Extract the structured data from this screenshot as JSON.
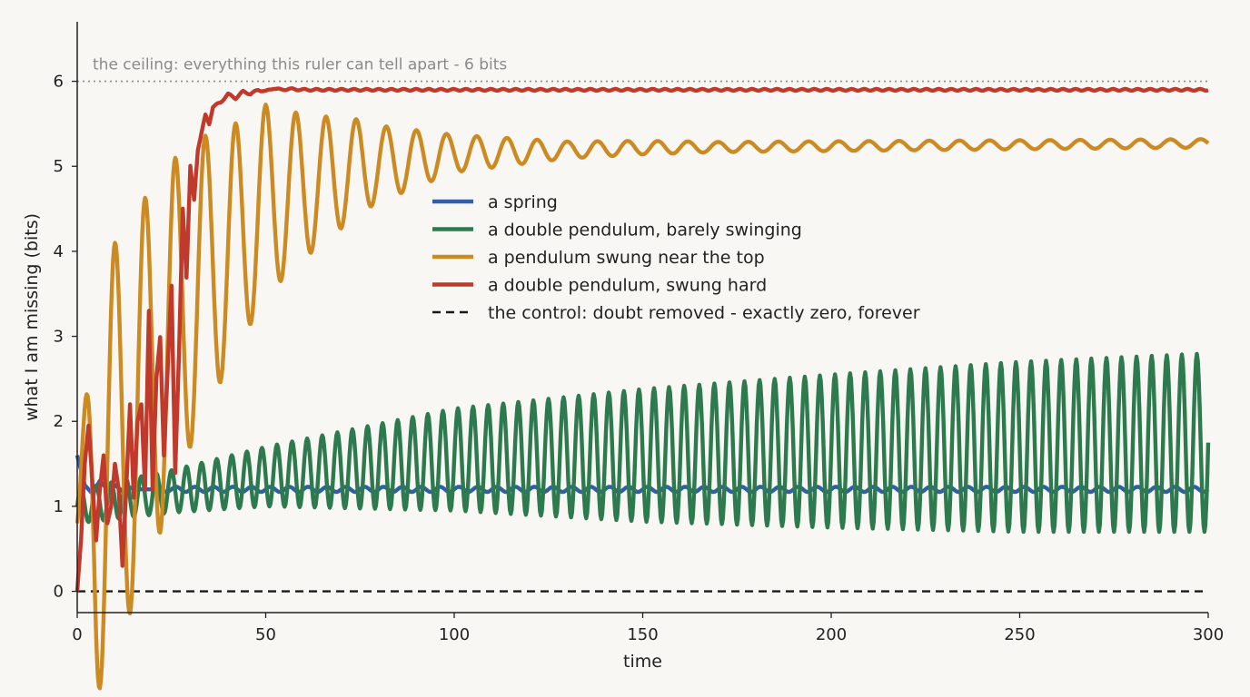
{
  "chart_data": {
    "type": "line",
    "xlabel": "time",
    "ylabel": "what I am missing  (bits)",
    "xlim": [
      0,
      300
    ],
    "ylim": [
      -0.25,
      6.7
    ],
    "xticks": [
      0,
      50,
      100,
      150,
      200,
      250,
      300
    ],
    "yticks": [
      0,
      1,
      2,
      3,
      4,
      5,
      6
    ],
    "grid": false,
    "legend_position": "center",
    "ceiling": {
      "value": 6,
      "label": "the ceiling: everything this ruler can tell apart - 6 bits",
      "color": "#8a8a8a"
    },
    "series": [
      {
        "name": "a spring",
        "color": "#2f5fa7",
        "style": "solid",
        "points": [
          [
            0,
            1.6
          ],
          [
            2,
            1.25
          ],
          [
            4,
            1.15
          ],
          [
            6,
            1.3
          ],
          [
            8,
            1.2
          ],
          [
            10,
            1.25
          ],
          [
            12,
            1.18
          ],
          [
            14,
            1.22
          ],
          [
            16,
            1.2
          ],
          [
            20,
            1.2
          ],
          [
            300,
            1.2
          ]
        ],
        "steady_level": 1.2,
        "wobble_amplitude": 0.03,
        "wobble_period": 5
      },
      {
        "name": "a double pendulum, barely swinging",
        "color": "#2e7a4f",
        "style": "solid",
        "points": [
          [
            0,
            1.0
          ],
          [
            50,
            1.35
          ],
          [
            100,
            1.55
          ],
          [
            150,
            1.6
          ],
          [
            200,
            1.65
          ],
          [
            250,
            1.7
          ],
          [
            300,
            1.75
          ]
        ],
        "amplitude_points": [
          [
            0,
            0.2
          ],
          [
            25,
            0.25
          ],
          [
            50,
            0.35
          ],
          [
            100,
            0.6
          ],
          [
            150,
            0.78
          ],
          [
            200,
            0.9
          ],
          [
            250,
            1.0
          ],
          [
            300,
            1.05
          ]
        ],
        "oscillation_period": 4.0
      },
      {
        "name": "a pendulum swung near the top",
        "color": "#cc8a22",
        "style": "solid",
        "points": [
          [
            0,
            0.8
          ],
          [
            30,
            3.5
          ],
          [
            50,
            4.6
          ],
          [
            75,
            5.0
          ],
          [
            100,
            5.15
          ],
          [
            150,
            5.22
          ],
          [
            300,
            5.27
          ]
        ],
        "amplitude_points": [
          [
            0,
            0.3
          ],
          [
            5,
            2.5
          ],
          [
            15,
            2.3
          ],
          [
            25,
            2.0
          ],
          [
            40,
            1.4
          ],
          [
            60,
            0.85
          ],
          [
            80,
            0.45
          ],
          [
            100,
            0.22
          ],
          [
            130,
            0.1
          ],
          [
            170,
            0.06
          ],
          [
            300,
            0.05
          ]
        ],
        "oscillation_period": 8.0
      },
      {
        "name": "a double pendulum, swung hard",
        "color": "#c0392b",
        "style": "solid",
        "points": [
          [
            0,
            0.0
          ],
          [
            1,
            0.6
          ],
          [
            2,
            1.5
          ],
          [
            3,
            1.95
          ],
          [
            4,
            1.3
          ],
          [
            5,
            0.6
          ],
          [
            6,
            1.2
          ],
          [
            7,
            1.6
          ],
          [
            8,
            0.8
          ],
          [
            9,
            1.0
          ],
          [
            10,
            1.5
          ],
          [
            11,
            1.2
          ],
          [
            12,
            0.3
          ],
          [
            13,
            1.2
          ],
          [
            14,
            2.2
          ],
          [
            15,
            1.1
          ],
          [
            16,
            2.0
          ],
          [
            17,
            2.2
          ],
          [
            18,
            1.2
          ],
          [
            19,
            3.3
          ],
          [
            20,
            1.2
          ],
          [
            21,
            2.5
          ],
          [
            22,
            3.0
          ],
          [
            23,
            1.6
          ],
          [
            24,
            2.6
          ],
          [
            25,
            3.6
          ],
          [
            26,
            1.4
          ],
          [
            27,
            2.8
          ],
          [
            28,
            4.5
          ],
          [
            29,
            3.7
          ],
          [
            30,
            5.0
          ],
          [
            31,
            4.6
          ],
          [
            32,
            5.2
          ],
          [
            33,
            5.4
          ],
          [
            34,
            5.6
          ],
          [
            35,
            5.5
          ],
          [
            36,
            5.7
          ],
          [
            38,
            5.75
          ],
          [
            40,
            5.85
          ],
          [
            42,
            5.8
          ],
          [
            44,
            5.88
          ],
          [
            46,
            5.85
          ],
          [
            48,
            5.9
          ],
          [
            50,
            5.88
          ],
          [
            52,
            5.92
          ],
          [
            54,
            5.9
          ],
          [
            56,
            5.91
          ],
          [
            60,
            5.9
          ],
          [
            300,
            5.9
          ]
        ],
        "steady_level": 5.9,
        "wobble_amplitude": 0.01
      },
      {
        "name": "the control: doubt removed - exactly zero, forever",
        "color": "#1a1a1a",
        "style": "dashed",
        "points": [
          [
            0,
            0
          ],
          [
            300,
            0
          ]
        ]
      }
    ]
  }
}
